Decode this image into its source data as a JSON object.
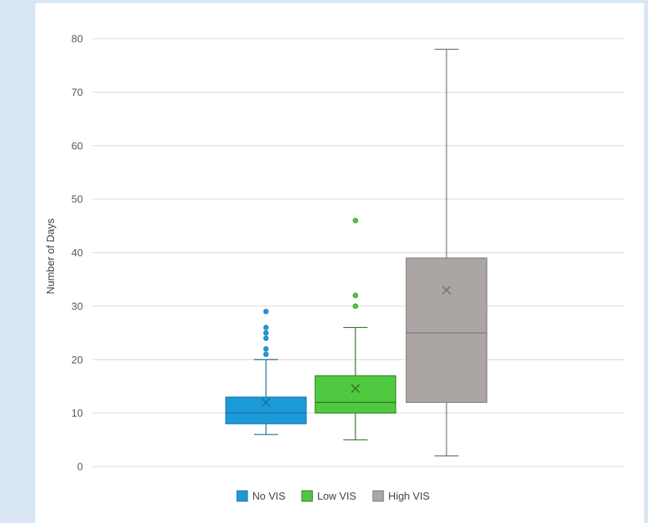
{
  "chart_data": {
    "type": "box",
    "title": "",
    "xlabel": "",
    "ylabel": "Number of Days",
    "ylim": [
      0,
      80
    ],
    "yticks": [
      0,
      10,
      20,
      30,
      40,
      50,
      60,
      70,
      80
    ],
    "grid": true,
    "legend_position": "bottom",
    "series": [
      {
        "name": "No VIS",
        "color": "#1a9bd7",
        "stroke": "#1f6fa3",
        "min": 6,
        "q1": 8,
        "median": 10,
        "q3": 13,
        "max": 20,
        "mean": 12,
        "outliers": [
          21,
          22,
          24,
          25,
          26,
          29
        ]
      },
      {
        "name": "Low VIS",
        "color": "#4fc93f",
        "stroke": "#2f7a22",
        "min": 5,
        "q1": 10,
        "median": 12,
        "q3": 17,
        "max": 26,
        "mean": 14.6,
        "outliers": [
          30,
          32,
          46
        ]
      },
      {
        "name": "High VIS",
        "color": "#aba6a4",
        "stroke": "#7a7574",
        "min": 2,
        "q1": 12,
        "median": 25,
        "q3": 39,
        "max": 78,
        "mean": 33,
        "outliers": []
      }
    ]
  }
}
